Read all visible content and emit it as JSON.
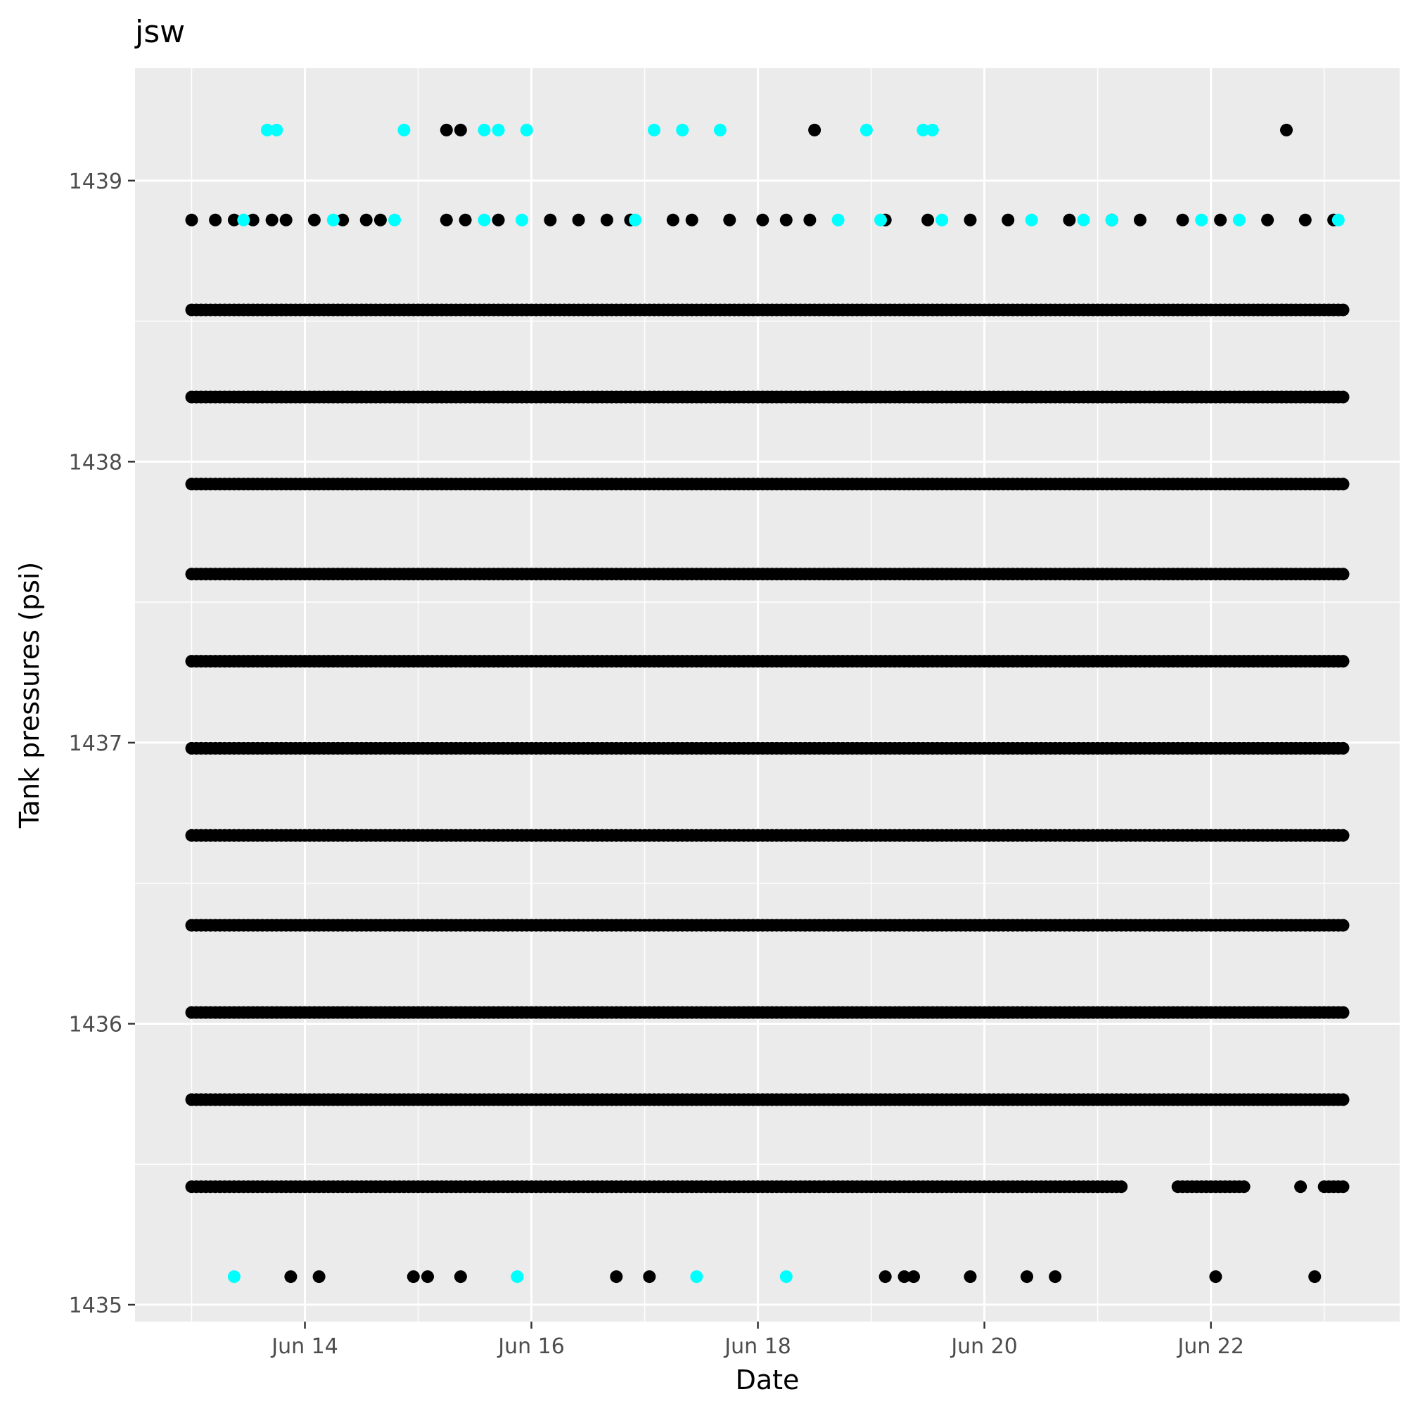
{
  "chart_data": {
    "type": "scatter",
    "title": "jsw",
    "xlabel": "Date",
    "ylabel": "Tank pressures (psi)",
    "x_ticks": [
      {
        "date": "2023-06-14",
        "label": "Jun 14"
      },
      {
        "date": "2023-06-16",
        "label": "Jun 16"
      },
      {
        "date": "2023-06-18",
        "label": "Jun 18"
      },
      {
        "date": "2023-06-20",
        "label": "Jun 20"
      },
      {
        "date": "2023-06-22",
        "label": "Jun 22"
      }
    ],
    "y_ticks": [
      1435,
      1436,
      1437,
      1438,
      1439
    ],
    "xlim": [
      "2023-06-12T12:00",
      "2023-06-23T16:00"
    ],
    "ylim": [
      1434.94,
      1439.4
    ],
    "data_range": [
      "2023-06-13T00:00",
      "2023-06-23T04:00"
    ],
    "grid": true,
    "legend": "none",
    "colors": {
      "primary": "#000000",
      "secondary": "#00ffff",
      "panel": "#ebebeb",
      "grid": "#ffffff"
    },
    "continuous_levels": [
      1435.42,
      1435.73,
      1436.04,
      1436.35,
      1436.67,
      1436.98,
      1437.29,
      1437.6,
      1437.92,
      1438.23,
      1438.54
    ],
    "gap_levels": [
      {
        "y": 1435.42,
        "gaps": [
          [
            "2023-06-21T06:00",
            "2023-06-21T16:00"
          ],
          [
            "2023-06-22T08:00",
            "2023-06-22T18:00"
          ],
          [
            "2023-06-22T20:00",
            "2023-06-22T23:00"
          ]
        ]
      }
    ],
    "sparse_points": [
      {
        "y": 1438.86,
        "x": [
          "2023-06-13T00:00",
          "2023-06-13T05:00",
          "2023-06-13T09:00",
          "2023-06-13T13:00",
          "2023-06-13T17:00",
          "2023-06-13T20:00",
          "2023-06-14T02:00",
          "2023-06-14T08:00",
          "2023-06-14T13:00",
          "2023-06-14T16:00",
          "2023-06-15T06:00",
          "2023-06-15T10:00",
          "2023-06-15T17:00",
          "2023-06-16T04:00",
          "2023-06-16T10:00",
          "2023-06-16T16:00",
          "2023-06-16T21:00",
          "2023-06-17T06:00",
          "2023-06-17T10:00",
          "2023-06-17T18:00",
          "2023-06-18T01:00",
          "2023-06-18T06:00",
          "2023-06-18T11:00",
          "2023-06-19T03:00",
          "2023-06-19T12:00",
          "2023-06-19T21:00",
          "2023-06-20T05:00",
          "2023-06-20T18:00",
          "2023-06-21T03:00",
          "2023-06-21T09:00",
          "2023-06-21T18:00",
          "2023-06-22T02:00",
          "2023-06-22T12:00",
          "2023-06-22T20:00",
          "2023-06-23T02:00"
        ],
        "color": "#000000"
      },
      {
        "y": 1438.86,
        "x": [
          "2023-06-13T11:00",
          "2023-06-14T06:00",
          "2023-06-14T19:00",
          "2023-06-15T14:00",
          "2023-06-15T22:00",
          "2023-06-16T22:00",
          "2023-06-18T17:00",
          "2023-06-19T02:00",
          "2023-06-19T15:00",
          "2023-06-20T10:00",
          "2023-06-20T21:00",
          "2023-06-21T03:00",
          "2023-06-21T22:00",
          "2023-06-22T06:00",
          "2023-06-23T03:00"
        ],
        "color": "#00ffff"
      },
      {
        "y": 1439.18,
        "x": [
          "2023-06-15T06:00",
          "2023-06-15T09:00",
          "2023-06-18T12:00",
          "2023-06-22T16:00"
        ],
        "color": "#000000"
      },
      {
        "y": 1439.18,
        "x": [
          "2023-06-13T16:00",
          "2023-06-13T18:00",
          "2023-06-14T21:00",
          "2023-06-15T14:00",
          "2023-06-15T17:00",
          "2023-06-15T23:00",
          "2023-06-17T02:00",
          "2023-06-17T08:00",
          "2023-06-17T16:00",
          "2023-06-18T23:00",
          "2023-06-19T11:00",
          "2023-06-19T13:00"
        ],
        "color": "#00ffff"
      },
      {
        "y": 1435.1,
        "x": [
          "2023-06-13T21:00",
          "2023-06-14T03:00",
          "2023-06-14T23:00",
          "2023-06-15T02:00",
          "2023-06-15T09:00",
          "2023-06-16T18:00",
          "2023-06-17T01:00",
          "2023-06-19T03:00",
          "2023-06-19T07:00",
          "2023-06-19T09:00",
          "2023-06-19T21:00",
          "2023-06-20T09:00",
          "2023-06-20T15:00",
          "2023-06-22T01:00",
          "2023-06-22T22:00"
        ],
        "color": "#000000"
      },
      {
        "y": 1435.1,
        "x": [
          "2023-06-13T09:00",
          "2023-06-15T21:00",
          "2023-06-17T11:00",
          "2023-06-18T06:00"
        ],
        "color": "#00ffff"
      }
    ]
  }
}
